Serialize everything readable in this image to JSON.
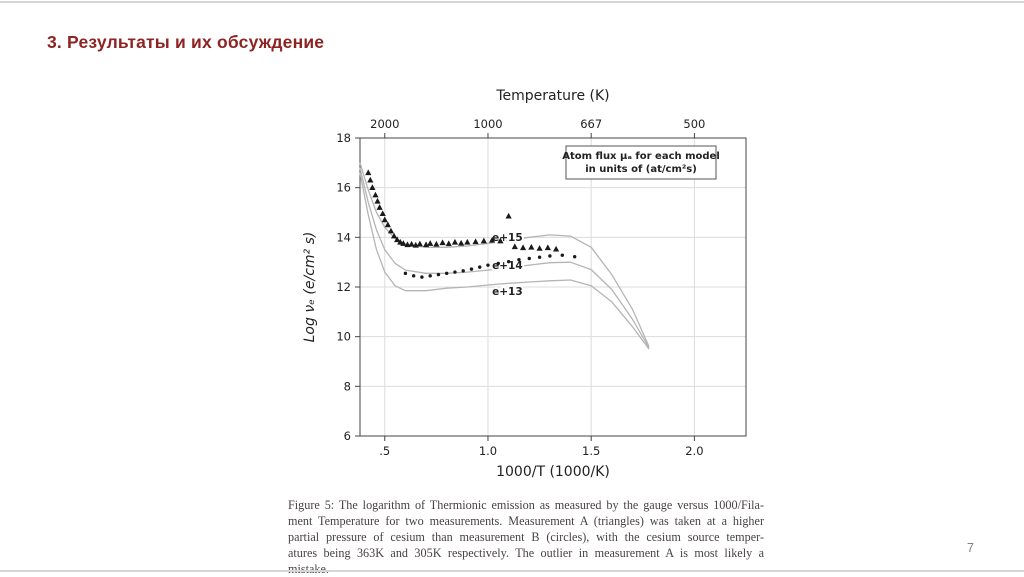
{
  "slide": {
    "title": "3. Результаты и их обсуждение",
    "page_number": "7",
    "accent_color": "#8e2323"
  },
  "figure": {
    "caption_lines": [
      "Figure 5: The logarithm of Thermionic emission as measured by the gauge versus 1000/Fila-",
      "ment Temperature for two measurements. Measurement A (triangles) was taken at a higher",
      "partial pressure of cesium than measurement B (circles), with the cesium source temper-",
      "atures being 363K and 305K respectively. The outlier in measurement A is most likely a",
      "mistake."
    ]
  },
  "chart_data": {
    "type": "line",
    "title": "Temperature (K)",
    "xlabel": "1000/T  (1000/K)",
    "ylabel": "Log νₑ  (e/cm² s)",
    "xlim": [
      0.38,
      2.25
    ],
    "ylim": [
      6,
      18
    ],
    "grid": true,
    "x_ticks": [
      {
        "v": 0.5,
        "label": ".5"
      },
      {
        "v": 1.0,
        "label": "1.0"
      },
      {
        "v": 1.5,
        "label": "1.5"
      },
      {
        "v": 2.0,
        "label": "2.0"
      }
    ],
    "y_ticks": [
      6,
      8,
      10,
      12,
      14,
      16,
      18
    ],
    "top_axis": {
      "label": "Temperature (K)",
      "ticks": [
        {
          "v": 0.5,
          "label": "2000"
        },
        {
          "v": 1.0,
          "label": "1000"
        },
        {
          "v": 1.5,
          "label": "667"
        },
        {
          "v": 2.0,
          "label": "500"
        }
      ]
    },
    "legend": {
      "lines": [
        "Atom flux μₐ for each model",
        "in units of  (at/cm²s)"
      ],
      "position": "top-right"
    },
    "colors": {
      "grid": "#dcdcdc",
      "frame": "#444444",
      "curve": "#b5b5b5",
      "marker": "#1a1a1a"
    },
    "curves": [
      {
        "name": "e+15",
        "label_pos": [
          1.02,
          13.85
        ],
        "points": [
          [
            0.38,
            17.0
          ],
          [
            0.42,
            15.9
          ],
          [
            0.46,
            15.0
          ],
          [
            0.5,
            14.4
          ],
          [
            0.55,
            13.95
          ],
          [
            0.6,
            13.72
          ],
          [
            0.7,
            13.6
          ],
          [
            0.8,
            13.6
          ],
          [
            0.9,
            13.65
          ],
          [
            1.0,
            13.75
          ],
          [
            1.1,
            13.88
          ],
          [
            1.2,
            14.0
          ],
          [
            1.3,
            14.1
          ],
          [
            1.4,
            14.05
          ],
          [
            1.5,
            13.6
          ],
          [
            1.6,
            12.5
          ],
          [
            1.7,
            11.1
          ],
          [
            1.78,
            9.6
          ]
        ]
      },
      {
        "name": "e+14",
        "label_pos": [
          1.02,
          12.72
        ],
        "points": [
          [
            0.38,
            16.8
          ],
          [
            0.42,
            15.4
          ],
          [
            0.46,
            14.3
          ],
          [
            0.5,
            13.5
          ],
          [
            0.55,
            12.95
          ],
          [
            0.6,
            12.68
          ],
          [
            0.7,
            12.55
          ],
          [
            0.8,
            12.55
          ],
          [
            0.9,
            12.6
          ],
          [
            1.0,
            12.68
          ],
          [
            1.1,
            12.78
          ],
          [
            1.2,
            12.88
          ],
          [
            1.3,
            12.98
          ],
          [
            1.4,
            13.0
          ],
          [
            1.5,
            12.7
          ],
          [
            1.6,
            11.9
          ],
          [
            1.7,
            10.7
          ],
          [
            1.78,
            9.55
          ]
        ]
      },
      {
        "name": "e+13",
        "label_pos": [
          1.02,
          11.68
        ],
        "points": [
          [
            0.38,
            16.6
          ],
          [
            0.42,
            14.9
          ],
          [
            0.46,
            13.5
          ],
          [
            0.5,
            12.6
          ],
          [
            0.55,
            12.05
          ],
          [
            0.6,
            11.85
          ],
          [
            0.7,
            11.85
          ],
          [
            0.8,
            11.95
          ],
          [
            0.9,
            12.0
          ],
          [
            1.0,
            12.08
          ],
          [
            1.1,
            12.15
          ],
          [
            1.2,
            12.2
          ],
          [
            1.3,
            12.25
          ],
          [
            1.4,
            12.28
          ],
          [
            1.5,
            12.05
          ],
          [
            1.6,
            11.4
          ],
          [
            1.7,
            10.4
          ],
          [
            1.78,
            9.5
          ]
        ]
      }
    ],
    "series": [
      {
        "name": "Measurement A (triangles)",
        "marker": "triangle",
        "points": [
          [
            0.42,
            16.6
          ],
          [
            0.43,
            16.3
          ],
          [
            0.44,
            16.0
          ],
          [
            0.455,
            15.7
          ],
          [
            0.465,
            15.45
          ],
          [
            0.475,
            15.2
          ],
          [
            0.49,
            14.95
          ],
          [
            0.5,
            14.7
          ],
          [
            0.515,
            14.5
          ],
          [
            0.53,
            14.25
          ],
          [
            0.545,
            14.05
          ],
          [
            0.56,
            13.9
          ],
          [
            0.575,
            13.8
          ],
          [
            0.59,
            13.75
          ],
          [
            0.61,
            13.7
          ],
          [
            0.63,
            13.72
          ],
          [
            0.65,
            13.68
          ],
          [
            0.67,
            13.73
          ],
          [
            0.7,
            13.7
          ],
          [
            0.72,
            13.75
          ],
          [
            0.75,
            13.72
          ],
          [
            0.78,
            13.78
          ],
          [
            0.81,
            13.74
          ],
          [
            0.84,
            13.8
          ],
          [
            0.87,
            13.76
          ],
          [
            0.9,
            13.8
          ],
          [
            0.94,
            13.82
          ],
          [
            0.98,
            13.85
          ],
          [
            1.02,
            13.88
          ],
          [
            1.06,
            13.85
          ],
          [
            1.1,
            14.85
          ],
          [
            1.13,
            13.62
          ],
          [
            1.17,
            13.58
          ],
          [
            1.21,
            13.6
          ],
          [
            1.25,
            13.55
          ],
          [
            1.29,
            13.58
          ],
          [
            1.33,
            13.52
          ]
        ]
      },
      {
        "name": "Measurement B (circles)",
        "marker": "circle",
        "points": [
          [
            0.6,
            12.55
          ],
          [
            0.64,
            12.45
          ],
          [
            0.68,
            12.4
          ],
          [
            0.72,
            12.45
          ],
          [
            0.76,
            12.5
          ],
          [
            0.8,
            12.55
          ],
          [
            0.84,
            12.6
          ],
          [
            0.88,
            12.65
          ],
          [
            0.92,
            12.72
          ],
          [
            0.96,
            12.8
          ],
          [
            1.0,
            12.88
          ],
          [
            1.05,
            12.95
          ],
          [
            1.1,
            13.02
          ],
          [
            1.15,
            13.1
          ],
          [
            1.2,
            13.15
          ],
          [
            1.25,
            13.2
          ],
          [
            1.3,
            13.25
          ],
          [
            1.36,
            13.28
          ],
          [
            1.42,
            13.22
          ]
        ]
      }
    ]
  }
}
